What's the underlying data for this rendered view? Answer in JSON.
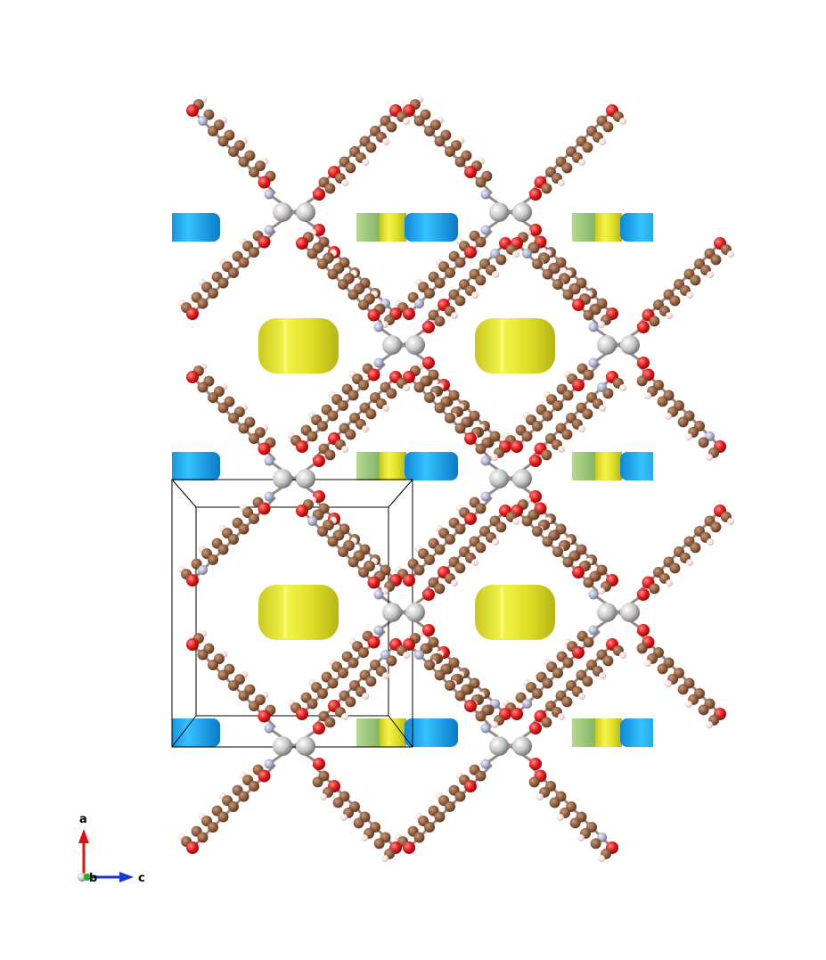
{
  "axes": {
    "a": "a",
    "b": "b",
    "c": "c"
  },
  "colors": {
    "background": "#ffffff",
    "carbon": "#8a5a3c",
    "oxygen": "#e21b1b",
    "nitrogen": "#a9aec8",
    "hydrogen": "#f2d8d4",
    "metal": "#c8c8c8",
    "bond": "#8a8a8a",
    "isosurface_yellow": "#e8e830",
    "isosurface_blue": "#1aa8f0",
    "isosurface_green": "#9cc77e",
    "axis_a": "#e01010",
    "axis_b": "#20b020",
    "axis_c": "#1a3ad8",
    "cell_edge": "#000000"
  }
}
